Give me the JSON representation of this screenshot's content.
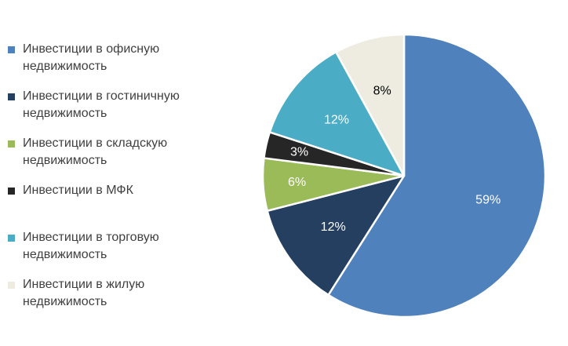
{
  "chart_data": {
    "type": "pie",
    "title": "",
    "legend_position": "left",
    "slices": [
      {
        "label": "Инвестиции в офисную недвижимость",
        "value": 59,
        "display": "59%",
        "color": "#4F81BD",
        "label_color": "#ffffff"
      },
      {
        "label": "Инвестиции в гостиничную недвижимость",
        "value": 12,
        "display": "12%",
        "color": "#243F60",
        "label_color": "#ffffff"
      },
      {
        "label": "Инвестиции в складскую недвижимость",
        "value": 6,
        "display": "6%",
        "color": "#9BBB59",
        "label_color": "#ffffff"
      },
      {
        "label": "Инвестиции в МФК",
        "value": 3,
        "display": "3%",
        "color": "#262626",
        "label_color": "#ffffff"
      },
      {
        "label": "Инвестиции в торговую недвижимость",
        "value": 12,
        "display": "12%",
        "color": "#4BACC6",
        "label_color": "#ffffff"
      },
      {
        "label": "Инвестиции в жилую недвижимость",
        "value": 8,
        "display": "8%",
        "color": "#EEECE1",
        "label_color": "#000000"
      }
    ]
  }
}
